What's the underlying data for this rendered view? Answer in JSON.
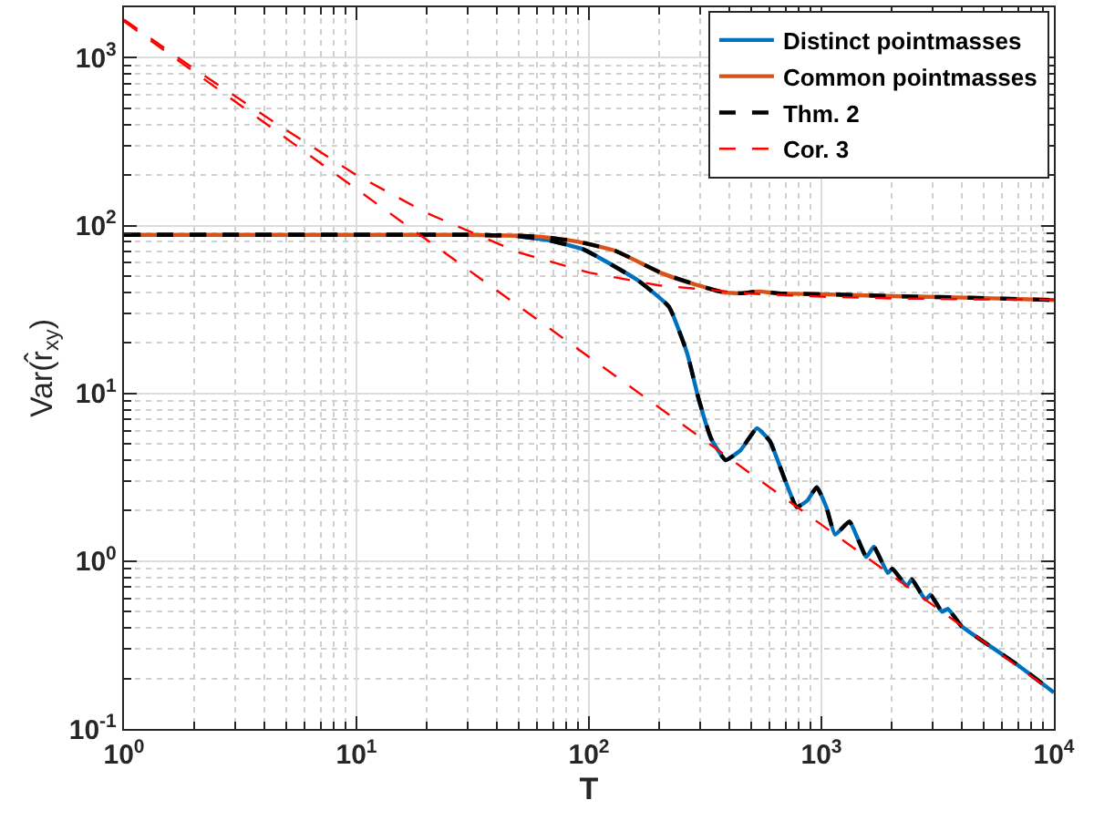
{
  "chart_data": {
    "type": "line",
    "xlabel": "T",
    "ylabel": "Var(r̂$_{xy}$)",
    "log": "xy",
    "grid": true,
    "legend": "top right",
    "marker": "none",
    "xlim": [
      1,
      10000
    ],
    "xticks": [
      {
        "value": 1,
        "label": "10$^{0}$"
      },
      {
        "value": 10,
        "label": "10$^{1}$"
      },
      {
        "value": 100,
        "label": "10$^{2}$"
      },
      {
        "value": 1000,
        "label": "10$^{3}$"
      },
      {
        "value": 10000,
        "label": "10$^{4}$"
      }
    ],
    "ylim": [
      0.1,
      2000
    ],
    "yticks": [
      {
        "value": 0.1,
        "label": "10$^{-1}$"
      },
      {
        "value": 1,
        "label": "10$^{0}$"
      },
      {
        "value": 10,
        "label": "10$^{1}$"
      },
      {
        "value": 100,
        "label": "10$^{2}$"
      },
      {
        "value": 1000,
        "label": "10$^{3}$"
      }
    ],
    "series": [
      {
        "name": "Distinct pointmasses",
        "color": "#0072bd",
        "line_style": "solid",
        "x": [
          48,
          66,
          95,
          163,
          221,
          265,
          295,
          335,
          387,
          450,
          528,
          600,
          700,
          783,
          870,
          955,
          1050,
          1145,
          1320,
          1560,
          1680,
          1930,
          2020,
          2330,
          2450,
          2800,
          2950,
          3300,
          3500,
          4000,
          5000,
          7000,
          10000
        ],
        "values": [
          87,
          82,
          72,
          47,
          32.8,
          17.2,
          9.5,
          5.4,
          4.0,
          4.6,
          6.2,
          5.2,
          3.0,
          2.1,
          2.3,
          2.76,
          2.1,
          1.44,
          1.72,
          1.06,
          1.22,
          0.85,
          0.9,
          0.71,
          0.78,
          0.59,
          0.63,
          0.5,
          0.52,
          0.41,
          0.33,
          0.24,
          0.165
        ]
      },
      {
        "name": "Common pointmasses",
        "color": "#d95319",
        "line_style": "solid",
        "x": [
          1,
          10,
          30,
          50,
          66,
          90,
          129,
          206,
          295,
          380,
          450,
          540,
          650,
          1000,
          2000,
          5000,
          10000
        ],
        "values": [
          88,
          88,
          88,
          87,
          85,
          80,
          71,
          52,
          44,
          40,
          39.5,
          40.5,
          39.5,
          39,
          38,
          37,
          36
        ]
      },
      {
        "name": "Thm. 2",
        "color": "#000000",
        "line_style": "dashed",
        "x": [
          1,
          10,
          30,
          48,
          66,
          95,
          163,
          221,
          265,
          295,
          335,
          387,
          450,
          528,
          600,
          700,
          783,
          870,
          955,
          1050,
          1145,
          1320,
          1560,
          1680,
          1930,
          2020,
          2330,
          2450,
          2800,
          2950,
          3300,
          3500,
          4000,
          5000,
          7000,
          10000
        ],
        "values": [
          88,
          88,
          88,
          87,
          82,
          72,
          47,
          32.8,
          17.2,
          9.5,
          5.4,
          4.0,
          4.6,
          6.2,
          5.2,
          3.0,
          2.1,
          2.3,
          2.76,
          2.1,
          1.44,
          1.72,
          1.06,
          1.22,
          0.85,
          0.9,
          0.71,
          0.78,
          0.59,
          0.63,
          0.5,
          0.52,
          0.41,
          0.33,
          0.24,
          0.165
        ]
      },
      {
        "color": "#000000",
        "line_style": "dashed",
        "x": [
          1,
          10,
          30,
          50,
          66,
          90,
          129,
          206,
          295,
          380,
          450,
          540,
          650,
          1000,
          2000,
          5000,
          10000
        ],
        "values": [
          88,
          88,
          88,
          87,
          85,
          80,
          71,
          52,
          44,
          40,
          39.5,
          40.5,
          39.5,
          39,
          38,
          37,
          36
        ]
      },
      {
        "name": "Cor. 3",
        "color": "#ff0000",
        "line_style": "dashed",
        "x": [
          1,
          10000
        ],
        "values": [
          1650,
          0.165
        ]
      },
      {
        "color": "#ff0000",
        "line_style": "dashed",
        "x": [
          1,
          2,
          5,
          10,
          20,
          50,
          100,
          200,
          500,
          1000,
          2000,
          5000,
          10000
        ],
        "values": [
          1690,
          860,
          370,
          200,
          119,
          69,
          52.5,
          44,
          39.3,
          37.7,
          36.8,
          36.3,
          36.2
        ]
      }
    ]
  }
}
